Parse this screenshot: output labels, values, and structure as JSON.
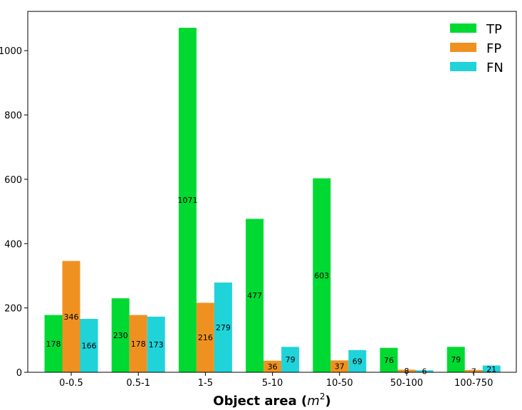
{
  "chart_data": {
    "type": "bar",
    "categories": [
      "0-0.5",
      "0.5-1",
      "1-5",
      "5-10",
      "10-50",
      "50-100",
      "100-750"
    ],
    "series": [
      {
        "name": "TP",
        "color": "#00d932",
        "values": [
          178,
          230,
          1071,
          477,
          603,
          76,
          79
        ]
      },
      {
        "name": "FP",
        "color": "#ef9121",
        "values": [
          346,
          178,
          216,
          36,
          37,
          8,
          7
        ]
      },
      {
        "name": "FN",
        "color": "#1fd3d9",
        "values": [
          166,
          173,
          279,
          79,
          69,
          6,
          21
        ]
      }
    ],
    "xlabel_main": "Object area (",
    "xlabel_var": "m",
    "xlabel_sup": "2",
    "xlabel_close": ")",
    "ylabel": "",
    "ylim": [
      0,
      1122
    ],
    "yticks": [
      0,
      200,
      400,
      600,
      800,
      1000
    ],
    "legend_position": "top-right",
    "grid": false
  }
}
